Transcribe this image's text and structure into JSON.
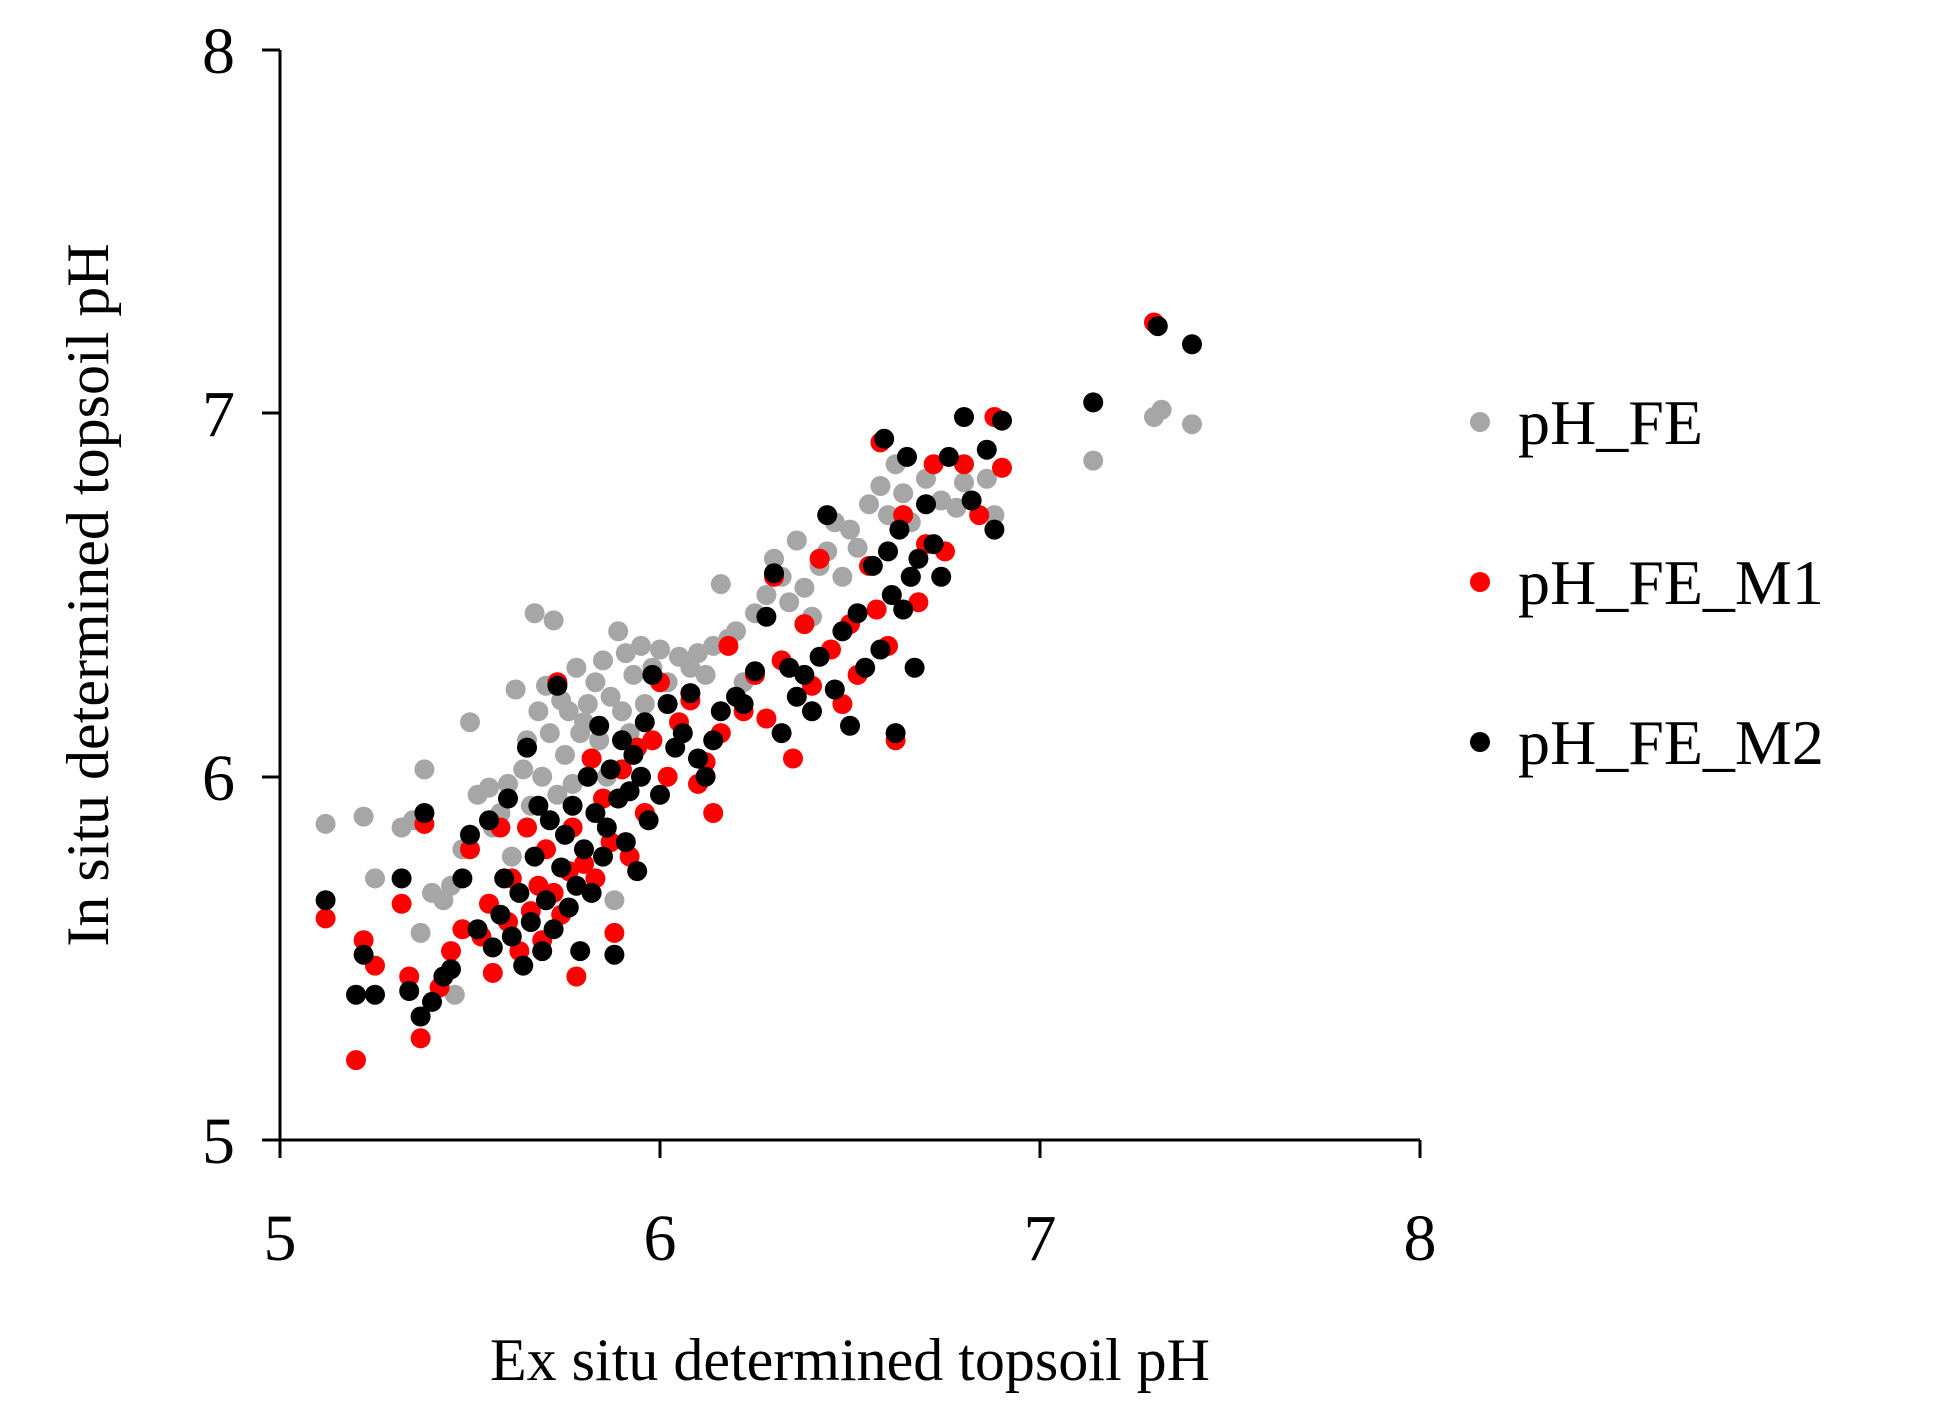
{
  "chart_data": {
    "type": "scatter",
    "title": "",
    "xlabel": "Ex situ determined topsoil pH",
    "ylabel": "In situ determined topsoil pH",
    "xlim": [
      5,
      8
    ],
    "ylim": [
      5,
      8
    ],
    "xticks": [
      "5",
      "6",
      "7",
      "8"
    ],
    "yticks": [
      "5",
      "6",
      "7",
      "8"
    ],
    "grid": false,
    "legend_position": "right",
    "colors": {
      "pH_FE": "#a6a6a6",
      "pH_FE_M1": "#ff0000",
      "pH_FE_M2": "#000000"
    },
    "series": [
      {
        "name": "pH_FE",
        "points": [
          [
            5.12,
            5.87
          ],
          [
            5.22,
            5.89
          ],
          [
            5.25,
            5.72
          ],
          [
            5.32,
            5.86
          ],
          [
            5.35,
            5.88
          ],
          [
            5.37,
            5.57
          ],
          [
            5.38,
            6.02
          ],
          [
            5.4,
            5.68
          ],
          [
            5.43,
            5.66
          ],
          [
            5.45,
            5.7
          ],
          [
            5.46,
            5.4
          ],
          [
            5.48,
            5.8
          ],
          [
            5.5,
            6.15
          ],
          [
            5.52,
            5.95
          ],
          [
            5.55,
            5.97
          ],
          [
            5.56,
            5.86
          ],
          [
            5.58,
            5.9
          ],
          [
            5.6,
            5.98
          ],
          [
            5.61,
            5.78
          ],
          [
            5.62,
            6.24
          ],
          [
            5.64,
            6.02
          ],
          [
            5.65,
            6.1
          ],
          [
            5.66,
            5.92
          ],
          [
            5.67,
            6.45
          ],
          [
            5.68,
            6.18
          ],
          [
            5.69,
            6.0
          ],
          [
            5.7,
            6.25
          ],
          [
            5.71,
            6.12
          ],
          [
            5.72,
            6.43
          ],
          [
            5.73,
            5.95
          ],
          [
            5.74,
            6.21
          ],
          [
            5.75,
            6.06
          ],
          [
            5.76,
            6.18
          ],
          [
            5.77,
            5.98
          ],
          [
            5.78,
            6.3
          ],
          [
            5.79,
            6.12
          ],
          [
            5.8,
            6.15
          ],
          [
            5.81,
            6.2
          ],
          [
            5.82,
            6.05
          ],
          [
            5.83,
            6.26
          ],
          [
            5.84,
            6.1
          ],
          [
            5.85,
            6.32
          ],
          [
            5.86,
            6.0
          ],
          [
            5.87,
            6.22
          ],
          [
            5.88,
            5.66
          ],
          [
            5.89,
            6.4
          ],
          [
            5.9,
            6.18
          ],
          [
            5.91,
            6.34
          ],
          [
            5.92,
            6.12
          ],
          [
            5.93,
            6.28
          ],
          [
            5.95,
            6.36
          ],
          [
            5.96,
            6.2
          ],
          [
            5.98,
            6.3
          ],
          [
            6.0,
            6.35
          ],
          [
            6.02,
            6.26
          ],
          [
            6.05,
            6.33
          ],
          [
            6.08,
            6.3
          ],
          [
            6.1,
            6.34
          ],
          [
            6.12,
            6.28
          ],
          [
            6.14,
            6.36
          ],
          [
            6.16,
            6.53
          ],
          [
            6.18,
            6.38
          ],
          [
            6.2,
            6.4
          ],
          [
            6.22,
            6.26
          ],
          [
            6.25,
            6.45
          ],
          [
            6.28,
            6.5
          ],
          [
            6.3,
            6.6
          ],
          [
            6.32,
            6.55
          ],
          [
            6.34,
            6.48
          ],
          [
            6.36,
            6.65
          ],
          [
            6.38,
            6.52
          ],
          [
            6.4,
            6.44
          ],
          [
            6.42,
            6.58
          ],
          [
            6.44,
            6.62
          ],
          [
            6.46,
            6.7
          ],
          [
            6.48,
            6.55
          ],
          [
            6.5,
            6.68
          ],
          [
            6.52,
            6.63
          ],
          [
            6.55,
            6.75
          ],
          [
            6.58,
            6.8
          ],
          [
            6.6,
            6.72
          ],
          [
            6.62,
            6.86
          ],
          [
            6.64,
            6.78
          ],
          [
            6.66,
            6.7
          ],
          [
            6.7,
            6.82
          ],
          [
            6.74,
            6.76
          ],
          [
            6.78,
            6.74
          ],
          [
            6.8,
            6.81
          ],
          [
            6.86,
            6.82
          ],
          [
            6.88,
            6.72
          ],
          [
            7.14,
            6.87
          ],
          [
            7.3,
            6.99
          ],
          [
            7.32,
            7.01
          ],
          [
            7.4,
            6.97
          ]
        ]
      },
      {
        "name": "pH_FE_M1",
        "points": [
          [
            5.12,
            5.61
          ],
          [
            5.2,
            5.22
          ],
          [
            5.22,
            5.55
          ],
          [
            5.25,
            5.48
          ],
          [
            5.32,
            5.65
          ],
          [
            5.34,
            5.45
          ],
          [
            5.37,
            5.28
          ],
          [
            5.38,
            5.87
          ],
          [
            5.42,
            5.42
          ],
          [
            5.45,
            5.52
          ],
          [
            5.48,
            5.58
          ],
          [
            5.5,
            5.8
          ],
          [
            5.53,
            5.56
          ],
          [
            5.55,
            5.65
          ],
          [
            5.56,
            5.46
          ],
          [
            5.58,
            5.86
          ],
          [
            5.6,
            5.6
          ],
          [
            5.61,
            5.72
          ],
          [
            5.63,
            5.52
          ],
          [
            5.65,
            5.86
          ],
          [
            5.66,
            5.63
          ],
          [
            5.68,
            5.7
          ],
          [
            5.69,
            5.55
          ],
          [
            5.7,
            5.8
          ],
          [
            5.72,
            5.68
          ],
          [
            5.73,
            6.26
          ],
          [
            5.74,
            5.62
          ],
          [
            5.76,
            5.74
          ],
          [
            5.77,
            5.86
          ],
          [
            5.78,
            5.45
          ],
          [
            5.8,
            5.76
          ],
          [
            5.82,
            6.05
          ],
          [
            5.83,
            5.72
          ],
          [
            5.85,
            5.94
          ],
          [
            5.87,
            5.82
          ],
          [
            5.88,
            5.57
          ],
          [
            5.9,
            6.02
          ],
          [
            5.92,
            5.78
          ],
          [
            5.94,
            6.08
          ],
          [
            5.96,
            5.9
          ],
          [
            5.98,
            6.1
          ],
          [
            6.0,
            6.26
          ],
          [
            6.02,
            6.0
          ],
          [
            6.05,
            6.15
          ],
          [
            6.08,
            6.21
          ],
          [
            6.1,
            5.98
          ],
          [
            6.12,
            6.04
          ],
          [
            6.14,
            5.9
          ],
          [
            6.16,
            6.12
          ],
          [
            6.18,
            6.36
          ],
          [
            6.22,
            6.18
          ],
          [
            6.25,
            6.28
          ],
          [
            6.28,
            6.16
          ],
          [
            6.3,
            6.55
          ],
          [
            6.32,
            6.32
          ],
          [
            6.35,
            6.05
          ],
          [
            6.38,
            6.42
          ],
          [
            6.4,
            6.25
          ],
          [
            6.42,
            6.6
          ],
          [
            6.45,
            6.35
          ],
          [
            6.48,
            6.2
          ],
          [
            6.5,
            6.42
          ],
          [
            6.52,
            6.28
          ],
          [
            6.55,
            6.58
          ],
          [
            6.57,
            6.46
          ],
          [
            6.58,
            6.92
          ],
          [
            6.6,
            6.36
          ],
          [
            6.62,
            6.1
          ],
          [
            6.64,
            6.72
          ],
          [
            6.66,
            6.55
          ],
          [
            6.68,
            6.48
          ],
          [
            6.7,
            6.64
          ],
          [
            6.72,
            6.86
          ],
          [
            6.75,
            6.62
          ],
          [
            6.8,
            6.86
          ],
          [
            6.84,
            6.72
          ],
          [
            6.88,
            6.99
          ],
          [
            6.9,
            6.85
          ],
          [
            7.3,
            7.25
          ]
        ]
      },
      {
        "name": "pH_FE_M2",
        "points": [
          [
            5.12,
            5.66
          ],
          [
            5.2,
            5.4
          ],
          [
            5.22,
            5.51
          ],
          [
            5.25,
            5.4
          ],
          [
            5.32,
            5.72
          ],
          [
            5.34,
            5.41
          ],
          [
            5.37,
            5.34
          ],
          [
            5.38,
            5.9
          ],
          [
            5.4,
            5.38
          ],
          [
            5.43,
            5.45
          ],
          [
            5.45,
            5.47
          ],
          [
            5.48,
            5.72
          ],
          [
            5.5,
            5.84
          ],
          [
            5.52,
            5.58
          ],
          [
            5.55,
            5.88
          ],
          [
            5.56,
            5.53
          ],
          [
            5.58,
            5.62
          ],
          [
            5.59,
            5.72
          ],
          [
            5.6,
            5.94
          ],
          [
            5.61,
            5.56
          ],
          [
            5.63,
            5.68
          ],
          [
            5.64,
            5.48
          ],
          [
            5.65,
            6.08
          ],
          [
            5.66,
            5.6
          ],
          [
            5.67,
            5.78
          ],
          [
            5.68,
            5.92
          ],
          [
            5.69,
            5.52
          ],
          [
            5.7,
            5.66
          ],
          [
            5.71,
            5.88
          ],
          [
            5.72,
            5.58
          ],
          [
            5.73,
            6.25
          ],
          [
            5.74,
            5.75
          ],
          [
            5.75,
            5.84
          ],
          [
            5.76,
            5.64
          ],
          [
            5.77,
            5.92
          ],
          [
            5.78,
            5.7
          ],
          [
            5.79,
            5.52
          ],
          [
            5.8,
            5.8
          ],
          [
            5.81,
            6.0
          ],
          [
            5.82,
            5.68
          ],
          [
            5.83,
            5.9
          ],
          [
            5.84,
            6.14
          ],
          [
            5.85,
            5.78
          ],
          [
            5.86,
            5.86
          ],
          [
            5.87,
            6.02
          ],
          [
            5.88,
            5.51
          ],
          [
            5.89,
            5.94
          ],
          [
            5.9,
            6.1
          ],
          [
            5.91,
            5.82
          ],
          [
            5.92,
            5.96
          ],
          [
            5.93,
            6.06
          ],
          [
            5.94,
            5.74
          ],
          [
            5.95,
            6.0
          ],
          [
            5.96,
            6.15
          ],
          [
            5.97,
            5.88
          ],
          [
            5.98,
            6.28
          ],
          [
            6.0,
            5.95
          ],
          [
            6.02,
            6.2
          ],
          [
            6.04,
            6.08
          ],
          [
            6.06,
            6.12
          ],
          [
            6.08,
            6.23
          ],
          [
            6.1,
            6.05
          ],
          [
            6.12,
            6.0
          ],
          [
            6.14,
            6.1
          ],
          [
            6.16,
            6.18
          ],
          [
            6.2,
            6.22
          ],
          [
            6.22,
            6.2
          ],
          [
            6.25,
            6.29
          ],
          [
            6.28,
            6.44
          ],
          [
            6.3,
            6.56
          ],
          [
            6.32,
            6.12
          ],
          [
            6.34,
            6.3
          ],
          [
            6.36,
            6.22
          ],
          [
            6.38,
            6.28
          ],
          [
            6.4,
            6.18
          ],
          [
            6.42,
            6.33
          ],
          [
            6.44,
            6.72
          ],
          [
            6.46,
            6.24
          ],
          [
            6.48,
            6.4
          ],
          [
            6.5,
            6.14
          ],
          [
            6.52,
            6.45
          ],
          [
            6.54,
            6.3
          ],
          [
            6.56,
            6.58
          ],
          [
            6.58,
            6.35
          ],
          [
            6.59,
            6.93
          ],
          [
            6.6,
            6.62
          ],
          [
            6.61,
            6.5
          ],
          [
            6.62,
            6.12
          ],
          [
            6.63,
            6.68
          ],
          [
            6.64,
            6.46
          ],
          [
            6.65,
            6.88
          ],
          [
            6.66,
            6.55
          ],
          [
            6.67,
            6.3
          ],
          [
            6.68,
            6.6
          ],
          [
            6.7,
            6.75
          ],
          [
            6.72,
            6.64
          ],
          [
            6.74,
            6.55
          ],
          [
            6.76,
            6.88
          ],
          [
            6.8,
            6.99
          ],
          [
            6.82,
            6.76
          ],
          [
            6.86,
            6.9
          ],
          [
            6.88,
            6.68
          ],
          [
            6.9,
            6.98
          ],
          [
            7.14,
            7.03
          ],
          [
            7.31,
            7.24
          ],
          [
            7.4,
            7.19
          ]
        ]
      }
    ]
  }
}
